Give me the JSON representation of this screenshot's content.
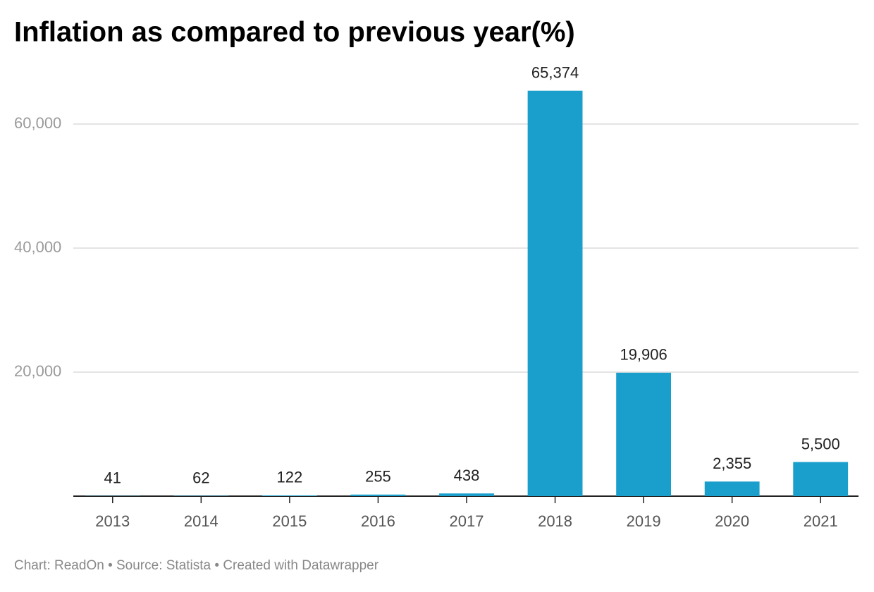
{
  "chart_data": {
    "type": "bar",
    "title": "Inflation as compared to previous year(%)",
    "categories": [
      "2013",
      "2014",
      "2015",
      "2016",
      "2017",
      "2018",
      "2019",
      "2020",
      "2021"
    ],
    "values": [
      41,
      62,
      122,
      255,
      438,
      65374,
      19906,
      2355,
      5500
    ],
    "value_labels": [
      "41",
      "62",
      "122",
      "255",
      "438",
      "65,374",
      "19,906",
      "2,355",
      "5,500"
    ],
    "color": "#1a9fcc",
    "ylim": [
      0,
      70000
    ],
    "yticks": [
      {
        "value": 20000,
        "label": "20,000"
      },
      {
        "value": 40000,
        "label": "40,000"
      },
      {
        "value": 60000,
        "label": "60,000"
      }
    ],
    "grid": true,
    "footer": "Chart: ReadOn • Source: Statista • Created with Datawrapper"
  }
}
